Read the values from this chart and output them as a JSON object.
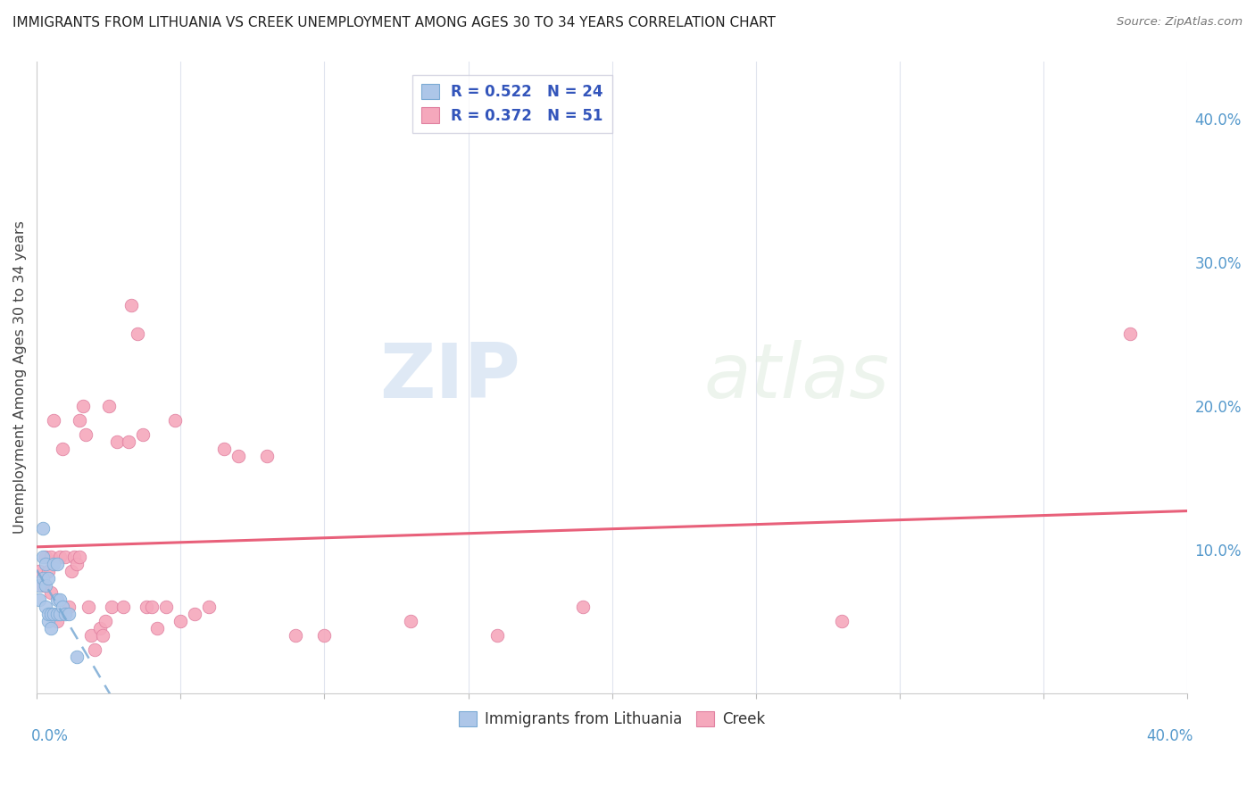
{
  "title": "IMMIGRANTS FROM LITHUANIA VS CREEK UNEMPLOYMENT AMONG AGES 30 TO 34 YEARS CORRELATION CHART",
  "source": "Source: ZipAtlas.com",
  "ylabel": "Unemployment Among Ages 30 to 34 years",
  "legend_label1": "Immigrants from Lithuania",
  "legend_label2": "Creek",
  "R1": 0.522,
  "N1": 24,
  "R2": 0.372,
  "N2": 51,
  "color_blue": "#adc6e8",
  "color_pink": "#f5a8bc",
  "line_color_blue": "#7aaad4",
  "line_color_pink": "#e8607a",
  "watermark_zip": "ZIP",
  "watermark_atlas": "atlas",
  "xlim": [
    0.0,
    0.4
  ],
  "ylim": [
    0.0,
    0.44
  ],
  "blue_scatter_x": [
    0.001,
    0.001,
    0.002,
    0.002,
    0.002,
    0.003,
    0.003,
    0.003,
    0.004,
    0.004,
    0.004,
    0.005,
    0.005,
    0.006,
    0.006,
    0.007,
    0.007,
    0.007,
    0.008,
    0.008,
    0.009,
    0.01,
    0.011,
    0.014
  ],
  "blue_scatter_y": [
    0.065,
    0.075,
    0.08,
    0.095,
    0.115,
    0.06,
    0.075,
    0.09,
    0.05,
    0.055,
    0.08,
    0.045,
    0.055,
    0.055,
    0.09,
    0.055,
    0.065,
    0.09,
    0.055,
    0.065,
    0.06,
    0.055,
    0.055,
    0.025
  ],
  "pink_scatter_x": [
    0.001,
    0.002,
    0.003,
    0.004,
    0.005,
    0.005,
    0.006,
    0.007,
    0.008,
    0.009,
    0.01,
    0.011,
    0.012,
    0.013,
    0.014,
    0.015,
    0.015,
    0.016,
    0.017,
    0.018,
    0.019,
    0.02,
    0.022,
    0.023,
    0.024,
    0.025,
    0.026,
    0.028,
    0.03,
    0.032,
    0.033,
    0.035,
    0.037,
    0.038,
    0.04,
    0.042,
    0.045,
    0.048,
    0.05,
    0.055,
    0.06,
    0.065,
    0.07,
    0.08,
    0.09,
    0.1,
    0.13,
    0.16,
    0.19,
    0.28,
    0.38
  ],
  "pink_scatter_y": [
    0.085,
    0.075,
    0.095,
    0.085,
    0.07,
    0.095,
    0.19,
    0.05,
    0.095,
    0.17,
    0.095,
    0.06,
    0.085,
    0.095,
    0.09,
    0.095,
    0.19,
    0.2,
    0.18,
    0.06,
    0.04,
    0.03,
    0.045,
    0.04,
    0.05,
    0.2,
    0.06,
    0.175,
    0.06,
    0.175,
    0.27,
    0.25,
    0.18,
    0.06,
    0.06,
    0.045,
    0.06,
    0.19,
    0.05,
    0.055,
    0.06,
    0.17,
    0.165,
    0.165,
    0.04,
    0.04,
    0.05,
    0.04,
    0.06,
    0.05,
    0.25
  ]
}
